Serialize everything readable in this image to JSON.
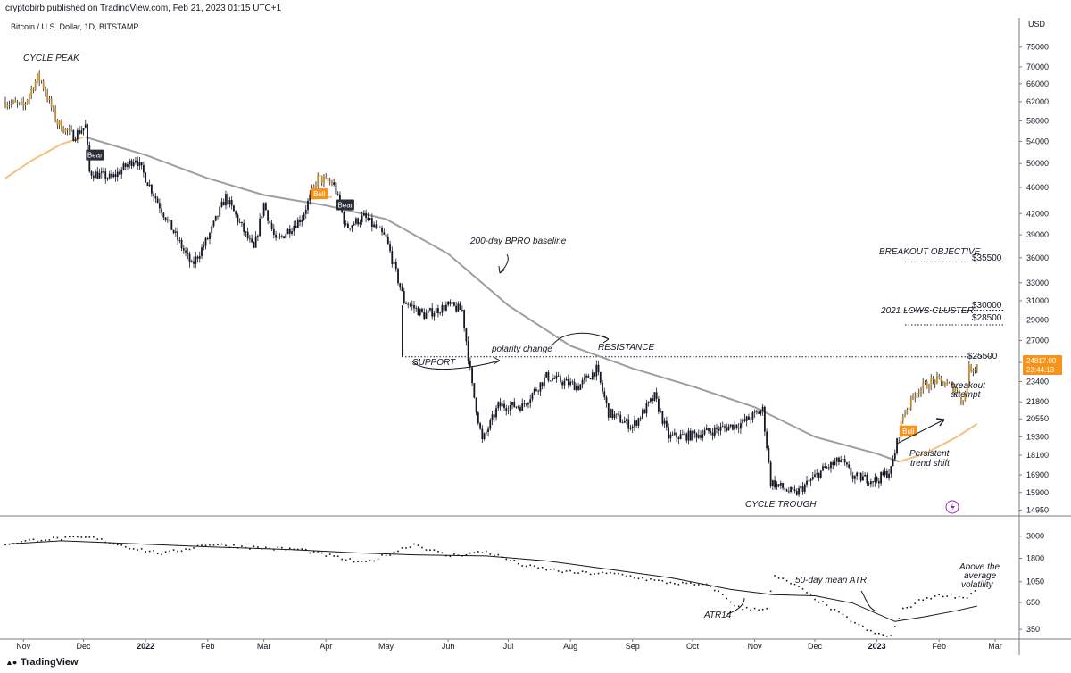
{
  "header": {
    "publisher_line": "cryptobirb published on TradingView.com, Feb 21, 2023 01:15 UTC+1",
    "symbol_line": "Bitcoin / U.S. Dollar, 1D, BITSTAMP"
  },
  "footer": {
    "brand": "TradingView"
  },
  "colors": {
    "candle": "#131722",
    "bull_candle": "#c48b2e",
    "baseline": "#9e9e9e",
    "ma_orange": "#f5c07f",
    "tag_dark": "#2a2e39",
    "tag_orange": "#f7931a",
    "price_tag": "#f7931a"
  },
  "chart_data": [
    {
      "type": "candlestick",
      "name": "price",
      "y_axis": {
        "unit": "USD",
        "scale": "log",
        "ticks": [
          75000,
          70000,
          66000,
          62000,
          58000,
          54000,
          50000,
          46000,
          42000,
          39000,
          36000,
          33000,
          31000,
          29000,
          27000,
          25000,
          23400,
          21800,
          20550,
          19300,
          18100,
          16900,
          15900,
          14950
        ],
        "ylim": [
          14700,
          79000
        ]
      },
      "x_axis": {
        "ticks": [
          "Nov",
          "Dec",
          "2022",
          "Feb",
          "Mar",
          "Apr",
          "May",
          "Jun",
          "Jul",
          "Aug",
          "Sep",
          "Oct",
          "Nov",
          "Dec",
          "2023",
          "Feb",
          "Mar"
        ],
        "tick_dates": [
          "2021-11-01",
          "2021-12-01",
          "2022-01-01",
          "2022-02-01",
          "2022-03-01",
          "2022-04-01",
          "2022-05-01",
          "2022-06-01",
          "2022-07-01",
          "2022-08-01",
          "2022-09-01",
          "2022-10-01",
          "2022-11-01",
          "2022-12-01",
          "2023-01-01",
          "2023-02-01",
          "2023-03-01"
        ],
        "range": [
          "2021-10-23",
          "2023-03-13"
        ]
      },
      "price_path": [
        [
          "2021-10-23",
          62000
        ],
        [
          "2021-11-01",
          61000
        ],
        [
          "2021-11-08",
          67500
        ],
        [
          "2021-11-10",
          66500
        ],
        [
          "2021-11-18",
          57500
        ],
        [
          "2021-11-26",
          55000
        ],
        [
          "2021-12-02",
          57000
        ],
        [
          "2021-12-04",
          48500
        ],
        [
          "2021-12-15",
          47500
        ],
        [
          "2021-12-27",
          51000
        ],
        [
          "2022-01-05",
          45000
        ],
        [
          "2022-01-10",
          42000
        ],
        [
          "2022-01-22",
          36000
        ],
        [
          "2022-01-24",
          35000
        ],
        [
          "2022-02-01",
          38500
        ],
        [
          "2022-02-10",
          44500
        ],
        [
          "2022-02-24",
          37000
        ],
        [
          "2022-03-01",
          43500
        ],
        [
          "2022-03-07",
          38000
        ],
        [
          "2022-03-20",
          41500
        ],
        [
          "2022-03-28",
          47500
        ],
        [
          "2022-04-05",
          46500
        ],
        [
          "2022-04-11",
          40000
        ],
        [
          "2022-04-20",
          41500
        ],
        [
          "2022-05-01",
          38500
        ],
        [
          "2022-05-10",
          31000
        ],
        [
          "2022-05-20",
          29500
        ],
        [
          "2022-06-01",
          30500
        ],
        [
          "2022-06-08",
          30000
        ],
        [
          "2022-06-13",
          23000
        ],
        [
          "2022-06-18",
          19000
        ],
        [
          "2022-06-26",
          21500
        ],
        [
          "2022-07-08",
          21500
        ],
        [
          "2022-07-20",
          23800
        ],
        [
          "2022-08-05",
          23000
        ],
        [
          "2022-08-14",
          24400
        ],
        [
          "2022-08-20",
          21000
        ],
        [
          "2022-09-01",
          20000
        ],
        [
          "2022-09-12",
          22200
        ],
        [
          "2022-09-19",
          19300
        ],
        [
          "2022-10-01",
          19400
        ],
        [
          "2022-10-25",
          20200
        ],
        [
          "2022-11-05",
          21200
        ],
        [
          "2022-11-09",
          16500
        ],
        [
          "2022-11-21",
          15800
        ],
        [
          "2022-12-05",
          17200
        ],
        [
          "2022-12-14",
          17800
        ],
        [
          "2022-12-20",
          16800
        ],
        [
          "2023-01-01",
          16600
        ],
        [
          "2023-01-08",
          17200
        ],
        [
          "2023-01-14",
          20800
        ],
        [
          "2023-01-21",
          22700
        ],
        [
          "2023-01-30",
          23500
        ],
        [
          "2023-02-09",
          22900
        ],
        [
          "2023-02-13",
          21800
        ],
        [
          "2023-02-16",
          24400
        ],
        [
          "2023-02-20",
          24817
        ]
      ],
      "bull_candle_segments": [
        [
          "2021-10-23",
          "2021-11-25"
        ],
        [
          "2022-03-26",
          "2022-04-04"
        ],
        [
          "2023-01-12",
          "2023-02-20"
        ]
      ],
      "series": [
        {
          "name": "200-day BPRO baseline",
          "points": [
            [
              "2021-12-02",
              54800
            ],
            [
              "2022-01-01",
              51500
            ],
            [
              "2022-02-01",
              47500
            ],
            [
              "2022-03-01",
              44800
            ],
            [
              "2022-04-01",
              43200
            ],
            [
              "2022-05-01",
              41200
            ],
            [
              "2022-06-01",
              36500
            ],
            [
              "2022-07-01",
              30500
            ],
            [
              "2022-08-01",
              26500
            ],
            [
              "2022-09-01",
              24500
            ],
            [
              "2022-10-01",
              23000
            ],
            [
              "2022-11-01",
              21400
            ],
            [
              "2022-12-01",
              19300
            ],
            [
              "2023-01-01",
              18200
            ],
            [
              "2023-01-12",
              17700
            ]
          ]
        },
        {
          "name": "orange trend (bull segments)",
          "segments": [
            [
              [
                "2021-10-23",
                47500
              ],
              [
                "2021-11-05",
                50500
              ],
              [
                "2021-11-20",
                53500
              ],
              [
                "2021-12-01",
                54800
              ]
            ],
            [
              [
                "2022-03-25",
                44200
              ],
              [
                "2022-04-04",
                44500
              ]
            ],
            [
              [
                "2023-01-12",
                17700
              ],
              [
                "2023-01-25",
                18200
              ],
              [
                "2023-02-10",
                19300
              ],
              [
                "2023-02-20",
                20200
              ]
            ]
          ]
        }
      ],
      "levels": [
        {
          "price": 25500,
          "from": "2022-05-09",
          "to": "2023-02-27",
          "label": "$25500"
        },
        {
          "price": 28500,
          "from": "2023-01-15",
          "to": "2023-03-05",
          "label": "$28500"
        },
        {
          "price": 30000,
          "from": "2023-01-15",
          "to": "2023-03-05",
          "label": "$30000"
        },
        {
          "price": 35500,
          "from": "2023-01-15",
          "to": "2023-03-05",
          "label": "$35500"
        }
      ],
      "signal_tags": [
        {
          "label": "Bear",
          "date": "2021-12-04",
          "price": 51500,
          "style": "dark"
        },
        {
          "label": "Bull",
          "date": "2022-03-26",
          "price": 45000,
          "style": "orange"
        },
        {
          "label": "Bear",
          "date": "2022-04-08",
          "price": 43300,
          "style": "dark"
        },
        {
          "label": "Bull",
          "date": "2023-01-14",
          "price": 19700,
          "style": "orange"
        }
      ],
      "price_tag": {
        "price": "24817.00",
        "countdown": "23:44:13"
      },
      "annotations": [
        "CYCLE PEAK",
        "200-day BPRO baseline",
        "polarity change",
        "RESISTANCE",
        "SUPPORT",
        "CYCLE TROUGH",
        "BREAKOUT OBJECTIVE",
        "2021 LOWS CLUSTER",
        "breakout",
        "attempt",
        "Persistent",
        "trend shift"
      ]
    },
    {
      "type": "line",
      "name": "ATR pane",
      "y_axis": {
        "scale": "log",
        "ticks": [
          3000,
          1800,
          1050,
          650,
          350
        ],
        "ylim": [
          280,
          4500
        ]
      },
      "series": [
        {
          "name": "ATR14",
          "points": [
            [
              "2021-10-23",
              2500
            ],
            [
              "2021-11-10",
              2800
            ],
            [
              "2021-12-05",
              2900
            ],
            [
              "2021-12-25",
              2300
            ],
            [
              "2022-01-10",
              2000
            ],
            [
              "2022-02-01",
              2500
            ],
            [
              "2022-02-25",
              2300
            ],
            [
              "2022-03-20",
              2200
            ],
            [
              "2022-04-20",
              1600
            ],
            [
              "2022-05-15",
              2500
            ],
            [
              "2022-06-01",
              1900
            ],
            [
              "2022-06-20",
              2100
            ],
            [
              "2022-07-10",
              1500
            ],
            [
              "2022-08-01",
              1300
            ],
            [
              "2022-08-25",
              1250
            ],
            [
              "2022-09-15",
              1050
            ],
            [
              "2022-10-10",
              950
            ],
            [
              "2022-10-25",
              560
            ],
            [
              "2022-11-08",
              570
            ],
            [
              "2022-11-10",
              1200
            ],
            [
              "2022-11-20",
              1000
            ],
            [
              "2022-12-10",
              550
            ],
            [
              "2022-12-30",
              320
            ],
            [
              "2023-01-08",
              300
            ],
            [
              "2023-01-14",
              550
            ],
            [
              "2023-01-25",
              720
            ],
            [
              "2023-02-05",
              780
            ],
            [
              "2023-02-14",
              720
            ],
            [
              "2023-02-20",
              880
            ]
          ]
        },
        {
          "name": "50-day mean ATR",
          "points": [
            [
              "2021-10-23",
              2500
            ],
            [
              "2021-11-20",
              2700
            ],
            [
              "2021-12-31",
              2500
            ],
            [
              "2022-02-01",
              2350
            ],
            [
              "2022-03-15",
              2200
            ],
            [
              "2022-04-15",
              2050
            ],
            [
              "2022-05-15",
              1950
            ],
            [
              "2022-06-20",
              1900
            ],
            [
              "2022-07-20",
              1700
            ],
            [
              "2022-08-20",
              1400
            ],
            [
              "2022-09-20",
              1150
            ],
            [
              "2022-10-20",
              880
            ],
            [
              "2022-11-10",
              780
            ],
            [
              "2022-12-01",
              760
            ],
            [
              "2022-12-20",
              640
            ],
            [
              "2023-01-10",
              420
            ],
            [
              "2023-01-25",
              470
            ],
            [
              "2023-02-10",
              540
            ],
            [
              "2023-02-20",
              600
            ]
          ]
        }
      ],
      "annotations": [
        "ATR14",
        "50-day mean ATR",
        "Above the",
        "average",
        "volatility"
      ]
    }
  ]
}
